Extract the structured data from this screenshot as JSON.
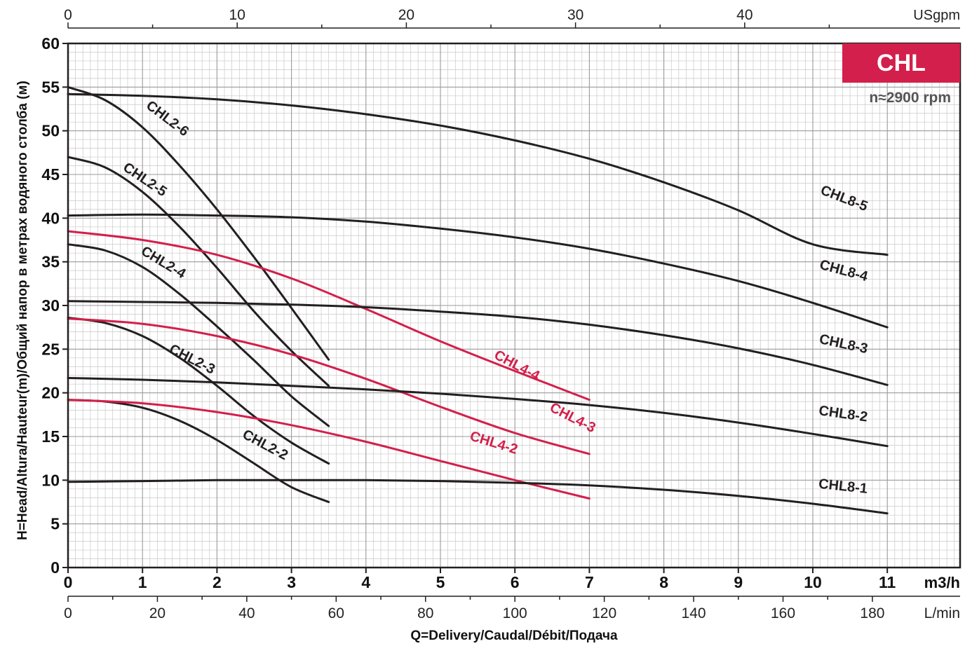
{
  "badge": {
    "label": "CHL",
    "speed": "n≈2900 rpm",
    "color": "#d31f4b"
  },
  "colors": {
    "chl2": "#231f20",
    "chl4": "#d31f4b",
    "chl8": "#231f20",
    "grid": "#c8c8c8",
    "frame": "#231f20"
  },
  "chart_data": {
    "type": "line",
    "ylabel": "H=Head/Altura/Hauteur(m)/Общий напор в метрах водяного столба (м)",
    "xlabel": "Q=Delivery/Caudal/Débit/Подача",
    "xlim": [
      0,
      11
    ],
    "ylim": [
      0,
      60
    ],
    "grid": true,
    "primary_x_unit": "m3/h",
    "primary_x_ticks": [
      "0",
      "1",
      "2",
      "3",
      "4",
      "5",
      "6",
      "7",
      "8",
      "9",
      "10",
      "11"
    ],
    "y_ticks": [
      "0",
      "5",
      "10",
      "15",
      "20",
      "25",
      "30",
      "35",
      "40",
      "45",
      "50",
      "55",
      "60"
    ],
    "top_axis": {
      "unit": "USgpm",
      "ticks": [
        "0",
        "10",
        "20",
        "30",
        "40"
      ],
      "values": [
        0,
        10,
        20,
        30,
        40
      ]
    },
    "bottom_axis": {
      "unit": "L/min",
      "ticks": [
        "0",
        "20",
        "40",
        "60",
        "80",
        "100",
        "120",
        "140",
        "160",
        "180"
      ],
      "values": [
        0,
        20,
        40,
        60,
        80,
        100,
        120,
        140,
        160,
        180
      ]
    },
    "series": [
      {
        "name": "CHL2-2",
        "group": "chl2",
        "x": [
          0,
          0.5,
          1,
          1.5,
          2,
          2.5,
          3,
          3.5
        ],
        "y": [
          19.2,
          19.0,
          18.3,
          16.8,
          14.6,
          11.9,
          9.2,
          7.5
        ]
      },
      {
        "name": "CHL2-3",
        "group": "chl2",
        "x": [
          0,
          0.5,
          1,
          1.5,
          2,
          2.5,
          3,
          3.5
        ],
        "y": [
          28.6,
          28.0,
          26.5,
          24.0,
          20.8,
          17.3,
          14.3,
          11.9
        ]
      },
      {
        "name": "CHL2-4",
        "group": "chl2",
        "x": [
          0,
          0.5,
          1,
          1.5,
          2,
          2.5,
          3,
          3.5
        ],
        "y": [
          37.0,
          36.3,
          34.4,
          31.3,
          27.6,
          23.7,
          19.6,
          16.2
        ]
      },
      {
        "name": "CHL2-5",
        "group": "chl2",
        "x": [
          0,
          0.5,
          1,
          1.5,
          2,
          2.5,
          3,
          3.5
        ],
        "y": [
          47.0,
          45.8,
          43.0,
          39.0,
          34.3,
          29.3,
          24.8,
          20.8
        ]
      },
      {
        "name": "CHL2-6",
        "group": "chl2",
        "x": [
          0,
          0.5,
          1,
          1.5,
          2,
          2.5,
          3,
          3.5
        ],
        "y": [
          55.0,
          53.5,
          50.4,
          46.0,
          41.0,
          35.5,
          29.7,
          23.8
        ]
      },
      {
        "name": "CHL4-2",
        "group": "chl4",
        "x": [
          0,
          1,
          2,
          3,
          4,
          5,
          6,
          7
        ],
        "y": [
          19.2,
          18.8,
          17.8,
          16.3,
          14.4,
          12.2,
          10.0,
          7.9
        ]
      },
      {
        "name": "CHL4-3",
        "group": "chl4",
        "x": [
          0,
          1,
          2,
          3,
          4,
          5,
          6,
          7
        ],
        "y": [
          28.5,
          27.9,
          26.5,
          24.4,
          21.6,
          18.4,
          15.4,
          13.0
        ]
      },
      {
        "name": "CHL4-4",
        "group": "chl4",
        "x": [
          0,
          1,
          2,
          3,
          4,
          5,
          6,
          7
        ],
        "y": [
          38.5,
          37.5,
          35.8,
          33.1,
          29.6,
          25.9,
          22.5,
          19.2
        ]
      },
      {
        "name": "CHL8-1",
        "group": "chl8",
        "x": [
          0,
          1,
          2,
          3,
          4,
          5,
          6,
          7,
          8,
          9,
          10,
          11
        ],
        "y": [
          9.8,
          9.9,
          10.0,
          10.0,
          10.0,
          9.9,
          9.7,
          9.4,
          8.9,
          8.2,
          7.3,
          6.2
        ]
      },
      {
        "name": "CHL8-2",
        "group": "chl8",
        "x": [
          0,
          1,
          2,
          3,
          4,
          5,
          6,
          7,
          8,
          9,
          10,
          11
        ],
        "y": [
          21.7,
          21.5,
          21.2,
          20.8,
          20.4,
          19.9,
          19.3,
          18.6,
          17.7,
          16.6,
          15.3,
          13.9
        ]
      },
      {
        "name": "CHL8-3",
        "group": "chl8",
        "x": [
          0,
          1,
          2,
          3,
          4,
          5,
          6,
          7,
          8,
          9,
          10,
          11
        ],
        "y": [
          30.5,
          30.4,
          30.3,
          30.1,
          29.8,
          29.3,
          28.7,
          27.8,
          26.6,
          25.1,
          23.2,
          20.9
        ]
      },
      {
        "name": "CHL8-4",
        "group": "chl8",
        "x": [
          0,
          1,
          2,
          3,
          4,
          5,
          6,
          7,
          8,
          9,
          10,
          11
        ],
        "y": [
          40.3,
          40.4,
          40.3,
          40.1,
          39.6,
          38.8,
          37.8,
          36.5,
          34.8,
          32.8,
          30.3,
          27.5
        ]
      },
      {
        "name": "CHL8-5",
        "group": "chl8",
        "x": [
          0,
          1,
          2,
          3,
          4,
          5,
          6,
          7,
          8,
          9,
          10,
          11
        ],
        "y": [
          54.2,
          54.0,
          53.6,
          52.9,
          51.9,
          50.6,
          48.9,
          46.8,
          44.1,
          40.9,
          37.0,
          35.8
        ]
      }
    ]
  }
}
